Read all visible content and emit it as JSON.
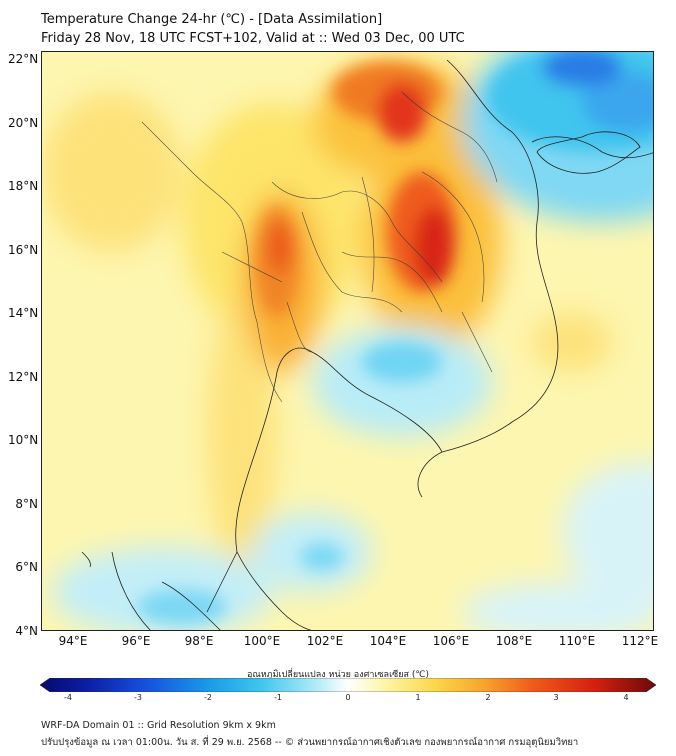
{
  "title_line1": "Temperature Change 24-hr (℃) - [Data Assimilation]",
  "title_line2": "Friday 28 Nov, 18 UTC FCST+102, Valid at :: Wed 03 Dec, 00 UTC",
  "lat_labels": [
    "22°N",
    "20°N",
    "18°N",
    "16°N",
    "14°N",
    "12°N",
    "10°N",
    "8°N",
    "6°N",
    "4°N"
  ],
  "lon_labels": [
    "94°E",
    "96°E",
    "98°E",
    "100°E",
    "102°E",
    "104°E",
    "106°E",
    "108°E",
    "110°E",
    "112°E"
  ],
  "colorbar": {
    "title": "อุณหภูมิเปลี่ยนแปลง หน่วย องศาเซลเซียส (℃)",
    "ticks": [
      "-4",
      "-3",
      "-2",
      "-1",
      "0",
      "1",
      "2",
      "3",
      "4"
    ],
    "min": -4,
    "max": 4
  },
  "footer_line1": "WRF-DA Domain 01 :: Grid Resolution 9km x 9km",
  "footer_line2": "ปรับปรุงข้อมูล ณ เวลา 01:00น. วัน ส. ที่ 29 พ.ย. 2568 -- © ส่วนพยากรณ์อากาศเชิงตัวเลข กองพยากรณ์อากาศ กรมอุตุนิยมวิทยา",
  "colors": {
    "background_field": "#fdf6a6",
    "warm": "#fbd34a",
    "hot": "#f26a1b",
    "hotter": "#e02a12",
    "cool": "#b5ecf6",
    "cold": "#3ec5ee",
    "colder": "#1472e6"
  },
  "map_extent": {
    "lon": [
      93,
      112.5
    ],
    "lat": [
      4,
      22.2
    ]
  }
}
